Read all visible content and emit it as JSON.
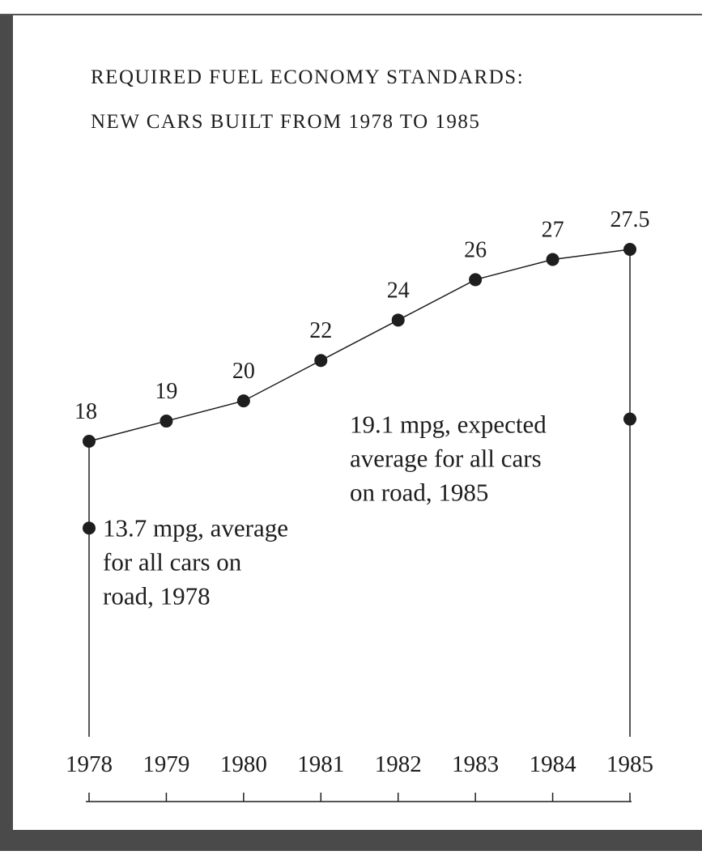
{
  "chart_data": {
    "type": "line",
    "title": "REQUIRED FUEL ECONOMY STANDARDS:",
    "subtitle": "NEW CARS BUILT FROM 1978 TO 1985",
    "categories": [
      "1978",
      "1979",
      "1980",
      "1981",
      "1982",
      "1983",
      "1984",
      "1985"
    ],
    "series": [
      {
        "name": "Required fuel economy standard",
        "color": "#1e1e1e",
        "values": [
          18,
          19,
          20,
          22,
          24,
          26,
          27,
          27.5
        ]
      }
    ],
    "annotations": [
      {
        "category": "1978",
        "value": 13.7,
        "lines": [
          "13.7 mpg, average",
          "for all cars on",
          "road, 1978"
        ]
      },
      {
        "category": "1985",
        "value": 19.1,
        "lines": [
          "19.1 mpg, expected",
          "average for all cars",
          "on road, 1985"
        ]
      }
    ]
  }
}
